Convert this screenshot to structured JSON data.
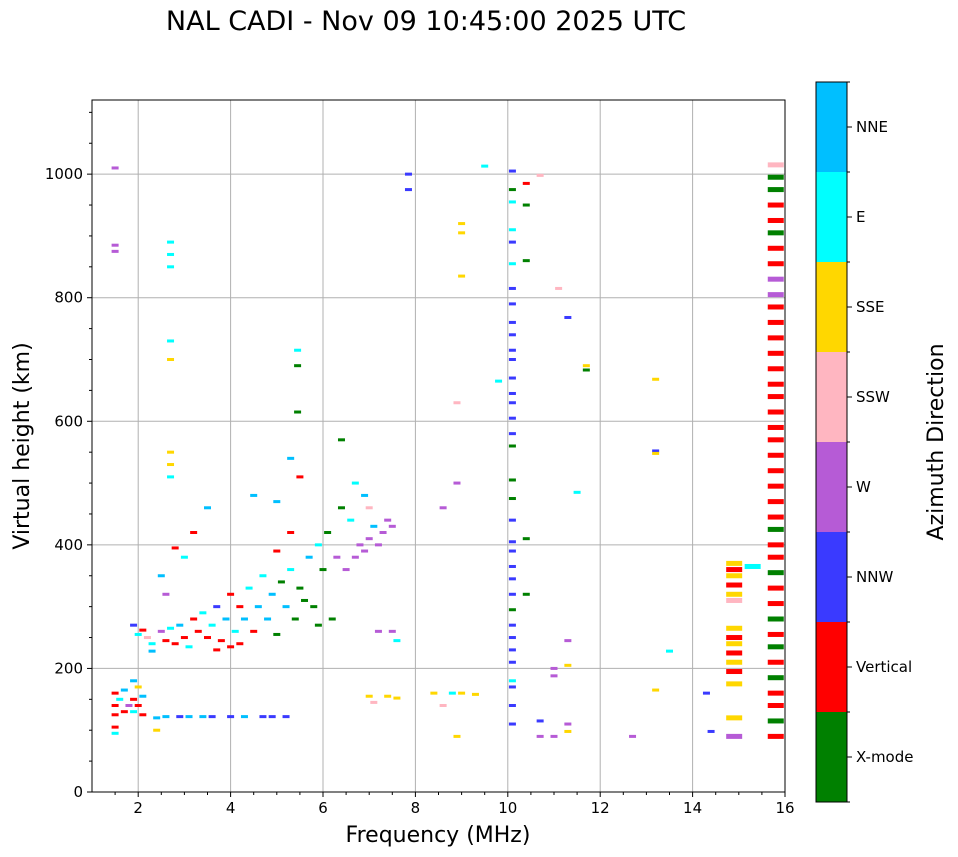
{
  "title": "NAL CADI - Nov 09 10:45:00 2025 UTC",
  "chart_data": {
    "type": "scatter",
    "title": "NAL CADI - Nov 09 10:45:00 2025 UTC",
    "xlabel": "Frequency (MHz)",
    "ylabel": "Virtual height (km)",
    "xlim": [
      1,
      16
    ],
    "ylim": [
      0,
      1120
    ],
    "xticks": [
      2,
      4,
      6,
      8,
      10,
      12,
      14,
      16
    ],
    "yticks": [
      0,
      200,
      400,
      600,
      800,
      1000
    ],
    "grid": true,
    "colorbar": {
      "label": "Azimuth Direction",
      "categories": [
        "X-mode",
        "Vertical",
        "NNW",
        "W",
        "SSW",
        "SSE",
        "E",
        "NNE"
      ],
      "colors": [
        "#008000",
        "#ff0000",
        "#3a3aff",
        "#b65bd6",
        "#ffb6c1",
        "#ffd700",
        "#00ffff",
        "#00bfff"
      ]
    },
    "points_format": [
      "frequency_mhz",
      "virtual_height_km",
      "direction_index"
    ],
    "points": [
      [
        1.5,
        160,
        1
      ],
      [
        1.5,
        140,
        1
      ],
      [
        1.5,
        125,
        1
      ],
      [
        1.5,
        105,
        1
      ],
      [
        1.6,
        150,
        6
      ],
      [
        1.7,
        130,
        1
      ],
      [
        1.7,
        165,
        7
      ],
      [
        1.8,
        140,
        3
      ],
      [
        1.9,
        180,
        7
      ],
      [
        1.9,
        150,
        1
      ],
      [
        1.9,
        130,
        6
      ],
      [
        2.0,
        170,
        5
      ],
      [
        2.0,
        140,
        1
      ],
      [
        2.1,
        155,
        7
      ],
      [
        2.1,
        125,
        1
      ],
      [
        1.5,
        95,
        6
      ],
      [
        2.4,
        100,
        5
      ],
      [
        2.4,
        120,
        7
      ],
      [
        2.6,
        122,
        7
      ],
      [
        2.9,
        122,
        2
      ],
      [
        3.1,
        122,
        7
      ],
      [
        3.4,
        122,
        7
      ],
      [
        3.6,
        122,
        2
      ],
      [
        4.0,
        122,
        2
      ],
      [
        4.3,
        122,
        7
      ],
      [
        4.7,
        122,
        2
      ],
      [
        4.9,
        122,
        2
      ],
      [
        5.2,
        122,
        2
      ],
      [
        1.9,
        270,
        2
      ],
      [
        2.0,
        255,
        6
      ],
      [
        2.1,
        262,
        1
      ],
      [
        2.2,
        250,
        4
      ],
      [
        2.3,
        240,
        6
      ],
      [
        2.3,
        228,
        7
      ],
      [
        2.5,
        260,
        3
      ],
      [
        2.6,
        245,
        1
      ],
      [
        2.7,
        265,
        6
      ],
      [
        2.8,
        240,
        1
      ],
      [
        2.9,
        270,
        7
      ],
      [
        3.0,
        250,
        1
      ],
      [
        3.1,
        235,
        6
      ],
      [
        3.2,
        280,
        1
      ],
      [
        3.3,
        260,
        1
      ],
      [
        3.4,
        290,
        6
      ],
      [
        3.5,
        250,
        1
      ],
      [
        3.6,
        270,
        6
      ],
      [
        3.7,
        230,
        1
      ],
      [
        3.7,
        300,
        2
      ],
      [
        3.8,
        245,
        1
      ],
      [
        3.9,
        280,
        7
      ],
      [
        4.0,
        235,
        1
      ],
      [
        4.0,
        320,
        1
      ],
      [
        4.1,
        260,
        6
      ],
      [
        4.2,
        300,
        1
      ],
      [
        4.2,
        240,
        1
      ],
      [
        4.3,
        280,
        7
      ],
      [
        4.4,
        330,
        6
      ],
      [
        4.5,
        260,
        1
      ],
      [
        4.6,
        300,
        7
      ],
      [
        4.7,
        350,
        6
      ],
      [
        4.8,
        280,
        7
      ],
      [
        4.9,
        320,
        7
      ],
      [
        5.0,
        390,
        1
      ],
      [
        5.0,
        255,
        0
      ],
      [
        5.1,
        340,
        0
      ],
      [
        5.2,
        300,
        7
      ],
      [
        5.3,
        360,
        6
      ],
      [
        5.3,
        420,
        1
      ],
      [
        5.4,
        280,
        0
      ],
      [
        5.5,
        330,
        0
      ],
      [
        5.6,
        310,
        0
      ],
      [
        5.7,
        380,
        7
      ],
      [
        5.8,
        300,
        0
      ],
      [
        5.9,
        400,
        6
      ],
      [
        5.9,
        270,
        0
      ],
      [
        6.0,
        360,
        0
      ],
      [
        6.1,
        420,
        0
      ],
      [
        6.2,
        280,
        0
      ],
      [
        6.3,
        380,
        3
      ],
      [
        6.4,
        460,
        0
      ],
      [
        6.4,
        570,
        0
      ],
      [
        6.5,
        360,
        3
      ],
      [
        6.6,
        440,
        6
      ],
      [
        6.7,
        380,
        3
      ],
      [
        6.8,
        400,
        3
      ],
      [
        6.9,
        390,
        3
      ],
      [
        7.0,
        410,
        3
      ],
      [
        7.1,
        430,
        7
      ],
      [
        7.2,
        400,
        3
      ],
      [
        7.3,
        420,
        3
      ],
      [
        7.4,
        440,
        3
      ],
      [
        7.5,
        430,
        3
      ],
      [
        6.7,
        500,
        6
      ],
      [
        6.9,
        480,
        7
      ],
      [
        7.0,
        460,
        4
      ],
      [
        5.5,
        510,
        1
      ],
      [
        5.3,
        540,
        7
      ],
      [
        4.5,
        480,
        7
      ],
      [
        5.0,
        470,
        7
      ],
      [
        3.5,
        460,
        7
      ],
      [
        3.2,
        420,
        1
      ],
      [
        3.0,
        380,
        6
      ],
      [
        2.8,
        395,
        1
      ],
      [
        2.5,
        350,
        7
      ],
      [
        2.6,
        320,
        3
      ],
      [
        2.7,
        890,
        6
      ],
      [
        2.7,
        870,
        6
      ],
      [
        2.7,
        850,
        6
      ],
      [
        2.7,
        730,
        6
      ],
      [
        2.7,
        700,
        5
      ],
      [
        2.7,
        550,
        5
      ],
      [
        2.7,
        530,
        5
      ],
      [
        2.7,
        510,
        6
      ],
      [
        1.5,
        1010,
        3
      ],
      [
        1.5,
        885,
        3
      ],
      [
        1.5,
        875,
        3
      ],
      [
        5.45,
        715,
        6
      ],
      [
        5.45,
        690,
        0
      ],
      [
        5.45,
        615,
        0
      ],
      [
        7.85,
        1000,
        2
      ],
      [
        7.85,
        975,
        2
      ],
      [
        9.0,
        920,
        5
      ],
      [
        9.0,
        905,
        5
      ],
      [
        9.0,
        835,
        5
      ],
      [
        9.5,
        1013,
        6
      ],
      [
        8.9,
        630,
        4
      ],
      [
        8.9,
        500,
        3
      ],
      [
        8.6,
        460,
        3
      ],
      [
        9.8,
        665,
        6
      ],
      [
        7.2,
        260,
        3
      ],
      [
        7.5,
        260,
        3
      ],
      [
        7.6,
        245,
        6
      ],
      [
        7.0,
        155,
        5
      ],
      [
        7.1,
        145,
        4
      ],
      [
        7.4,
        155,
        5
      ],
      [
        7.6,
        152,
        5
      ],
      [
        8.4,
        160,
        5
      ],
      [
        8.6,
        140,
        4
      ],
      [
        8.8,
        160,
        6
      ],
      [
        9.0,
        160,
        5
      ],
      [
        9.3,
        158,
        5
      ],
      [
        8.9,
        90,
        5
      ],
      [
        10.1,
        1005,
        2
      ],
      [
        10.1,
        975,
        0
      ],
      [
        10.1,
        955,
        6
      ],
      [
        10.1,
        910,
        6
      ],
      [
        10.1,
        890,
        2
      ],
      [
        10.1,
        855,
        6
      ],
      [
        10.1,
        815,
        2
      ],
      [
        10.1,
        790,
        2
      ],
      [
        10.1,
        760,
        2
      ],
      [
        10.1,
        740,
        2
      ],
      [
        10.1,
        715,
        2
      ],
      [
        10.1,
        700,
        2
      ],
      [
        10.1,
        670,
        2
      ],
      [
        10.1,
        645,
        2
      ],
      [
        10.1,
        630,
        2
      ],
      [
        10.1,
        605,
        2
      ],
      [
        10.1,
        580,
        2
      ],
      [
        10.1,
        560,
        0
      ],
      [
        10.1,
        505,
        0
      ],
      [
        10.1,
        475,
        0
      ],
      [
        10.1,
        440,
        2
      ],
      [
        10.1,
        405,
        2
      ],
      [
        10.1,
        390,
        2
      ],
      [
        10.1,
        365,
        2
      ],
      [
        10.1,
        345,
        2
      ],
      [
        10.1,
        320,
        2
      ],
      [
        10.1,
        295,
        0
      ],
      [
        10.1,
        270,
        2
      ],
      [
        10.1,
        250,
        2
      ],
      [
        10.1,
        230,
        2
      ],
      [
        10.1,
        210,
        2
      ],
      [
        10.1,
        180,
        6
      ],
      [
        10.1,
        170,
        2
      ],
      [
        10.1,
        140,
        2
      ],
      [
        10.1,
        110,
        2
      ],
      [
        10.4,
        985,
        1
      ],
      [
        10.4,
        950,
        0
      ],
      [
        10.4,
        860,
        0
      ],
      [
        10.4,
        410,
        0
      ],
      [
        10.4,
        320,
        0
      ],
      [
        10.7,
        998,
        4
      ],
      [
        10.7,
        115,
        2
      ],
      [
        10.7,
        90,
        3
      ],
      [
        11.0,
        200,
        3
      ],
      [
        11.0,
        188,
        3
      ],
      [
        11.0,
        90,
        3
      ],
      [
        11.3,
        245,
        3
      ],
      [
        11.3,
        205,
        5
      ],
      [
        11.3,
        110,
        3
      ],
      [
        11.3,
        98,
        5
      ],
      [
        11.1,
        815,
        4
      ],
      [
        11.3,
        768,
        2
      ],
      [
        11.7,
        690,
        5
      ],
      [
        11.7,
        683,
        0
      ],
      [
        11.5,
        485,
        6
      ],
      [
        13.2,
        668,
        5
      ],
      [
        13.2,
        552,
        2
      ],
      [
        13.2,
        548,
        5
      ],
      [
        13.2,
        165,
        5
      ],
      [
        13.5,
        228,
        6
      ],
      [
        12.7,
        90,
        3
      ],
      [
        14.3,
        160,
        2
      ],
      [
        14.4,
        98,
        2
      ],
      [
        14.9,
        370,
        5
      ],
      [
        14.9,
        360,
        1
      ],
      [
        14.9,
        350,
        5
      ],
      [
        14.9,
        335,
        1
      ],
      [
        14.9,
        320,
        5
      ],
      [
        14.9,
        310,
        4
      ],
      [
        14.9,
        265,
        5
      ],
      [
        14.9,
        250,
        1
      ],
      [
        14.9,
        240,
        5
      ],
      [
        14.9,
        225,
        1
      ],
      [
        14.9,
        210,
        5
      ],
      [
        14.9,
        195,
        1
      ],
      [
        14.9,
        175,
        5
      ],
      [
        14.9,
        120,
        5
      ],
      [
        14.9,
        90,
        3
      ],
      [
        15.3,
        365,
        6
      ],
      [
        15.8,
        1015,
        4
      ],
      [
        15.8,
        995,
        0
      ],
      [
        15.8,
        975,
        0
      ],
      [
        15.8,
        950,
        1
      ],
      [
        15.8,
        925,
        1
      ],
      [
        15.8,
        905,
        0
      ],
      [
        15.8,
        880,
        1
      ],
      [
        15.8,
        855,
        1
      ],
      [
        15.8,
        830,
        3
      ],
      [
        15.8,
        805,
        3
      ],
      [
        15.8,
        785,
        1
      ],
      [
        15.8,
        760,
        1
      ],
      [
        15.8,
        735,
        1
      ],
      [
        15.8,
        710,
        1
      ],
      [
        15.8,
        685,
        1
      ],
      [
        15.8,
        660,
        1
      ],
      [
        15.8,
        640,
        1
      ],
      [
        15.8,
        615,
        1
      ],
      [
        15.8,
        590,
        1
      ],
      [
        15.8,
        570,
        1
      ],
      [
        15.8,
        545,
        1
      ],
      [
        15.8,
        520,
        1
      ],
      [
        15.8,
        495,
        1
      ],
      [
        15.8,
        470,
        1
      ],
      [
        15.8,
        445,
        1
      ],
      [
        15.8,
        425,
        0
      ],
      [
        15.8,
        400,
        1
      ],
      [
        15.8,
        380,
        1
      ],
      [
        15.8,
        355,
        0
      ],
      [
        15.8,
        330,
        1
      ],
      [
        15.8,
        305,
        1
      ],
      [
        15.8,
        280,
        0
      ],
      [
        15.8,
        255,
        1
      ],
      [
        15.8,
        235,
        0
      ],
      [
        15.8,
        210,
        1
      ],
      [
        15.8,
        185,
        0
      ],
      [
        15.8,
        160,
        1
      ],
      [
        15.8,
        140,
        1
      ],
      [
        15.8,
        115,
        0
      ],
      [
        15.8,
        90,
        1
      ]
    ]
  }
}
